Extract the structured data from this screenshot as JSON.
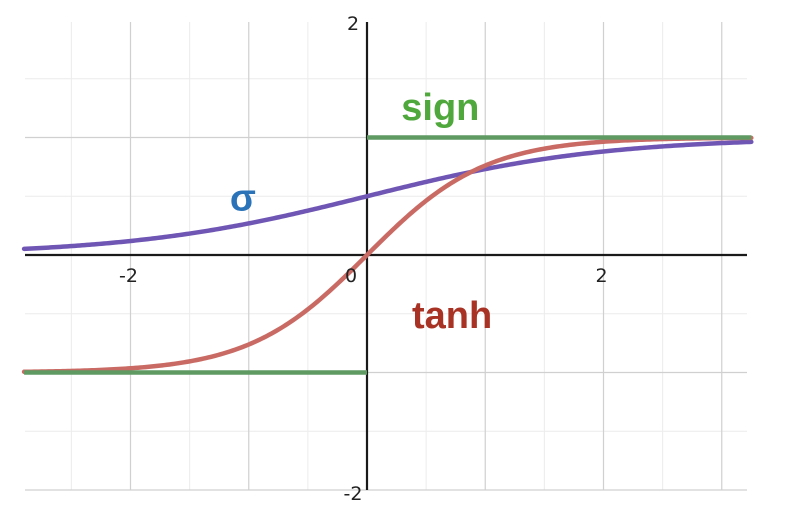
{
  "chart_data": {
    "type": "line",
    "title": "",
    "xlabel": "",
    "ylabel": "",
    "xlim": [
      -2.9,
      3.25
    ],
    "ylim": [
      -2,
      2
    ],
    "grid": true,
    "x_tick_labels": [
      {
        "value": -2,
        "text": "-2"
      },
      {
        "value": 0,
        "text": "0"
      },
      {
        "value": 2,
        "text": "2"
      }
    ],
    "y_tick_labels": [
      {
        "value": 2,
        "text": "2"
      },
      {
        "value": -2,
        "text": "-2"
      }
    ],
    "series": [
      {
        "name": "σ",
        "function": "sigmoid",
        "color": "#6f56b5"
      },
      {
        "name": "tanh",
        "function": "tanh",
        "color": "#c96b64"
      },
      {
        "name": "sign",
        "function": "sign",
        "color": "#5f9a63"
      }
    ],
    "label_colors": {
      "σ": "#2b73b8",
      "tanh": "#a83224",
      "sign": "#4fa83c"
    },
    "label_positions": [
      {
        "series": "σ",
        "x": -1.05,
        "y": 0.38
      },
      {
        "series": "tanh",
        "x": 0.72,
        "y": -0.62
      },
      {
        "series": "sign",
        "x": 0.62,
        "y": 1.15
      }
    ]
  }
}
